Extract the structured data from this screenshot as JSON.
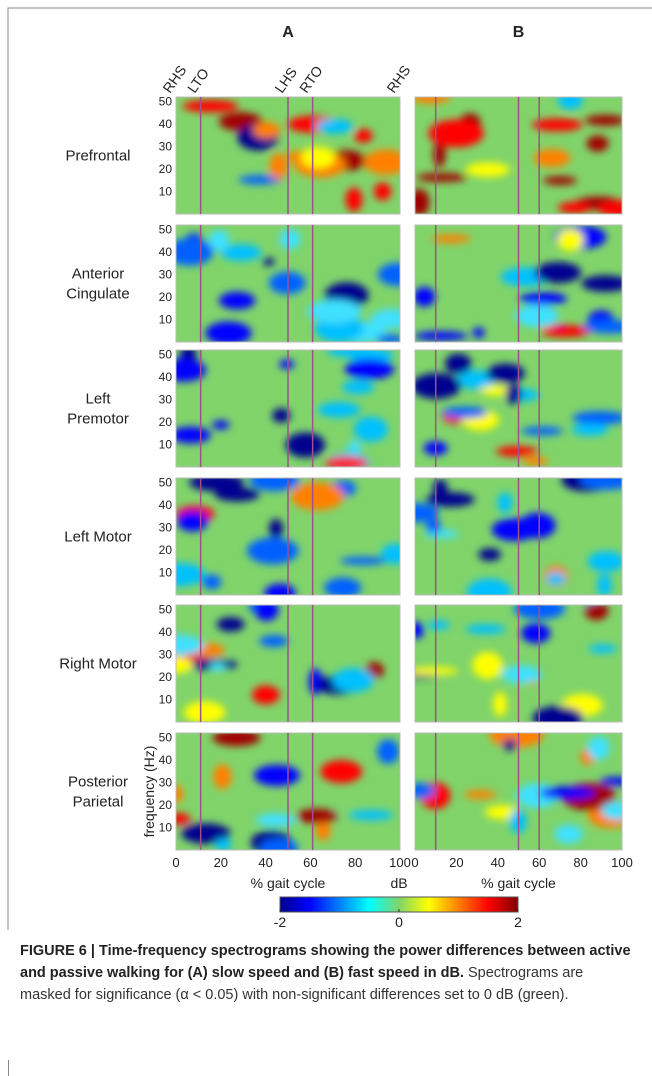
{
  "figure": {
    "columns": [
      {
        "label": "A",
        "event_lines": [
          11,
          50,
          61
        ]
      },
      {
        "label": "B",
        "event_lines": [
          10,
          50,
          60
        ]
      }
    ],
    "event_labels": [
      {
        "label": "RHS",
        "x": 0
      },
      {
        "label": "LTO",
        "x": 11
      },
      {
        "label": "LHS",
        "x": 50
      },
      {
        "label": "RTO",
        "x": 61
      },
      {
        "label": "RHS",
        "x": 100
      }
    ],
    "rows": [
      "Prefrontal",
      "Anterior\nCingulate",
      "Left\nPremotor",
      "Left Motor",
      "Right Motor",
      "Posterior\nParietal"
    ],
    "xlim": [
      0,
      100
    ],
    "xticks": [
      0,
      20,
      40,
      60,
      80,
      100
    ],
    "ylim": [
      0,
      52
    ],
    "yticks": [
      10,
      20,
      30,
      40,
      50
    ],
    "xlabel": "% gait cycle",
    "ylabel": "frequency (Hz)",
    "colorbar": {
      "label": "dB",
      "lim": [
        -2,
        2
      ],
      "ticks": [
        -2,
        0,
        2
      ]
    },
    "caption": {
      "bold": "FIGURE 6 | Time-frequency spectrograms showing the power differences between active and passive walking for (A) slow speed and (B) fast speed in dB.",
      "text": " Spectrograms are masked for significance (α < 0.05) with non-significant differences set to 0 dB (green)."
    }
  }
}
